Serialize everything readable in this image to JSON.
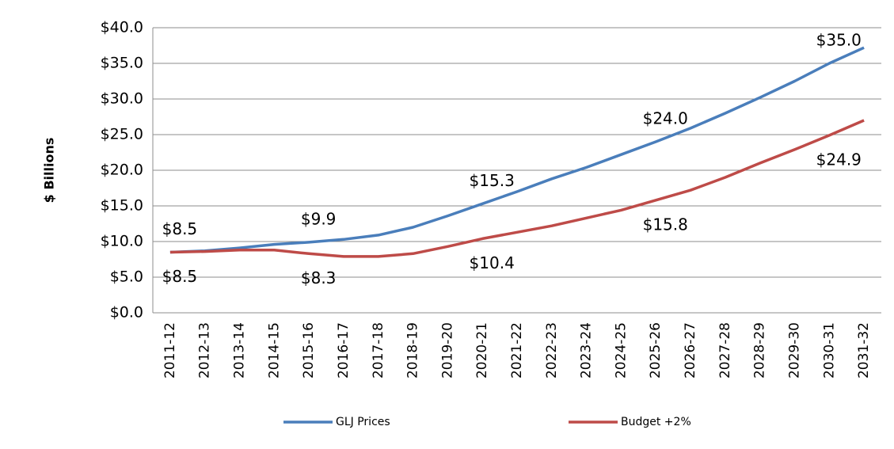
{
  "chart_data": {
    "type": "line",
    "y_label": "$ Billions",
    "categories": [
      "2011-12",
      "2012-13",
      "2013-14",
      "2014-15",
      "2015-16",
      "2016-17",
      "2017-18",
      "2018-19",
      "2019-20",
      "2020-21",
      "2021-22",
      "2022-23",
      "2023-24",
      "2024-25",
      "2025-26",
      "2026-27",
      "2027-28",
      "2028-29",
      "2029-30",
      "2030-31",
      "2031-32"
    ],
    "series": [
      {
        "name": "GLJ Prices",
        "color": "#4a7ebb",
        "values": [
          8.5,
          8.7,
          9.1,
          9.6,
          9.9,
          10.3,
          10.9,
          12.0,
          13.6,
          15.3,
          17.0,
          18.8,
          20.4,
          22.2,
          24.0,
          25.9,
          28.0,
          30.2,
          32.5,
          35.0,
          37.2
        ],
        "value_labels": [
          "$8.5",
          null,
          null,
          null,
          "$9.9",
          null,
          null,
          null,
          null,
          "$15.3",
          null,
          null,
          null,
          null,
          "$24.0",
          null,
          null,
          null,
          null,
          "$35.0",
          null
        ]
      },
      {
        "name": "Budget +2%",
        "color": "#be4b48",
        "values": [
          8.5,
          8.6,
          8.8,
          8.8,
          8.3,
          7.9,
          7.9,
          8.3,
          9.3,
          10.4,
          11.3,
          12.2,
          13.3,
          14.4,
          15.8,
          17.2,
          19.0,
          21.0,
          22.9,
          24.9,
          27.0
        ],
        "value_labels": [
          "$8.5",
          null,
          null,
          null,
          "$8.3",
          null,
          null,
          null,
          null,
          "$10.4",
          null,
          null,
          null,
          null,
          "$15.8",
          null,
          null,
          null,
          null,
          "$24.9",
          null
        ]
      }
    ],
    "ylim": [
      0,
      40
    ],
    "yticks": [
      {
        "value": 0,
        "label": "$0.0"
      },
      {
        "value": 5,
        "label": "$5.0"
      },
      {
        "value": 10,
        "label": "$10.0"
      },
      {
        "value": 15,
        "label": "$15.0"
      },
      {
        "value": 20,
        "label": "$20.0"
      },
      {
        "value": 25,
        "label": "$25.0"
      },
      {
        "value": 30,
        "label": "$30.0"
      },
      {
        "value": 35,
        "label": "$35.0"
      },
      {
        "value": 40,
        "label": "$40.0"
      }
    ],
    "grid": true
  }
}
